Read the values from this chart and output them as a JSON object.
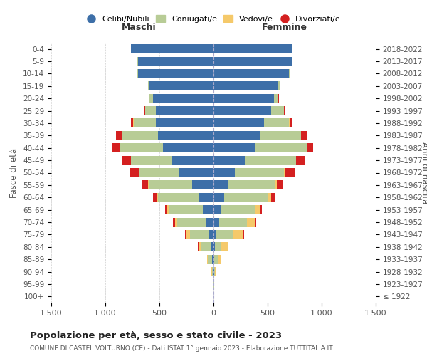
{
  "age_groups": [
    "100+",
    "95-99",
    "90-94",
    "85-89",
    "80-84",
    "75-79",
    "70-74",
    "65-69",
    "60-64",
    "55-59",
    "50-54",
    "45-49",
    "40-44",
    "35-39",
    "30-34",
    "25-29",
    "20-24",
    "15-19",
    "10-14",
    "5-9",
    "0-4"
  ],
  "birth_years": [
    "≤ 1922",
    "1923-1927",
    "1928-1932",
    "1933-1937",
    "1938-1942",
    "1943-1947",
    "1948-1952",
    "1953-1957",
    "1958-1962",
    "1963-1967",
    "1968-1972",
    "1973-1977",
    "1978-1982",
    "1983-1987",
    "1988-1992",
    "1993-1997",
    "1998-2002",
    "2003-2007",
    "2008-2012",
    "2013-2017",
    "2018-2022"
  ],
  "males": {
    "celibi": [
      2,
      2,
      5,
      10,
      20,
      40,
      65,
      100,
      130,
      200,
      320,
      380,
      470,
      510,
      530,
      530,
      560,
      600,
      700,
      700,
      760
    ],
    "coniugati": [
      1,
      3,
      8,
      40,
      100,
      180,
      270,
      310,
      380,
      400,
      370,
      380,
      390,
      340,
      210,
      100,
      30,
      5,
      2,
      1,
      1
    ],
    "vedovi": [
      0,
      1,
      5,
      10,
      20,
      30,
      20,
      15,
      10,
      5,
      3,
      2,
      1,
      1,
      1,
      1,
      1,
      0,
      0,
      0,
      0
    ],
    "divorziati": [
      0,
      0,
      1,
      2,
      5,
      10,
      20,
      25,
      40,
      60,
      80,
      80,
      70,
      50,
      20,
      10,
      3,
      1,
      0,
      0,
      0
    ]
  },
  "females": {
    "nubili": [
      2,
      2,
      4,
      8,
      15,
      25,
      50,
      70,
      100,
      130,
      200,
      290,
      390,
      430,
      470,
      530,
      560,
      600,
      700,
      730,
      730
    ],
    "coniugate": [
      1,
      2,
      6,
      30,
      60,
      160,
      260,
      310,
      400,
      440,
      450,
      470,
      470,
      380,
      230,
      120,
      40,
      10,
      3,
      1,
      1
    ],
    "vedove": [
      0,
      2,
      10,
      30,
      60,
      90,
      70,
      50,
      30,
      15,
      10,
      5,
      3,
      2,
      1,
      1,
      1,
      0,
      0,
      0,
      0
    ],
    "divorziate": [
      0,
      0,
      1,
      2,
      5,
      5,
      15,
      20,
      40,
      50,
      90,
      80,
      60,
      50,
      20,
      5,
      3,
      1,
      0,
      0,
      0
    ]
  },
  "colors": {
    "celibi_nubili": "#3d6fa8",
    "coniugati": "#b8cc96",
    "vedovi": "#f5c96a",
    "divorziati": "#d42020"
  },
  "title": "Popolazione per età, sesso e stato civile - 2023",
  "subtitle": "COMUNE DI CASTEL VOLTURNO (CE) - Dati ISTAT 1° gennaio 2023 - Elaborazione TUTTITALIA.IT",
  "ylabel_left": "Fasce di età",
  "ylabel_right": "Anni di nascita",
  "xlabel_left": "Maschi",
  "xlabel_right": "Femmine",
  "xlim": 1500,
  "legend_labels": [
    "Celibi/Nubili",
    "Coniugati/e",
    "Vedovi/e",
    "Divorziati/e"
  ],
  "bg_color": "#ffffff",
  "grid_color": "#cccccc"
}
